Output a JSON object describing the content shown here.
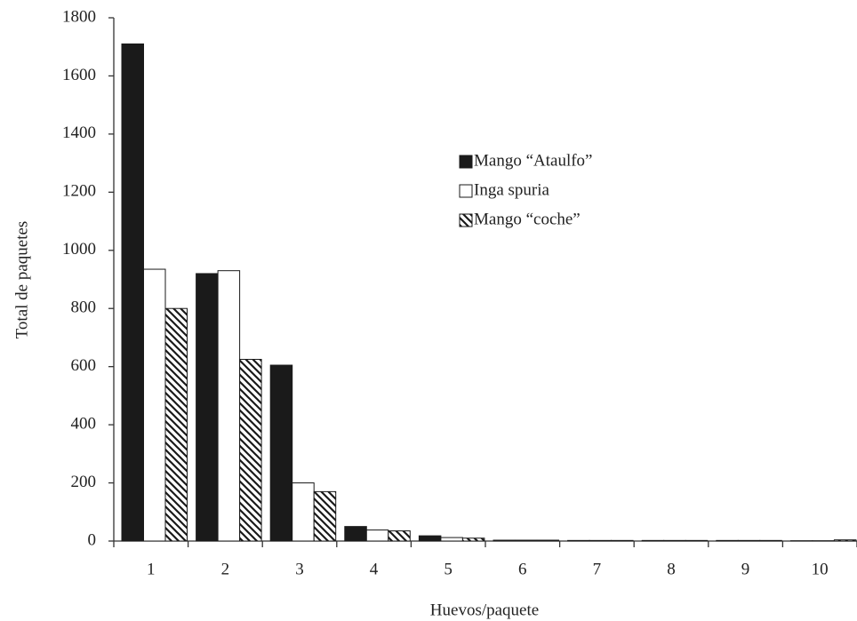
{
  "chart_data": {
    "type": "bar",
    "x_label": "Huevos/paquete",
    "y_label": "Total de paquetes",
    "categories": [
      "1",
      "2",
      "3",
      "4",
      "5",
      "6",
      "7",
      "8",
      "9",
      "10"
    ],
    "series": [
      {
        "name": "Mango “Ataulfo”",
        "color": "#1a1a1a",
        "values": [
          1710,
          920,
          605,
          50,
          18,
          3,
          2,
          2,
          2,
          1
        ]
      },
      {
        "name": "Inga spuria",
        "color": "#ffffff",
        "values": [
          935,
          930,
          200,
          38,
          12,
          3,
          2,
          2,
          2,
          1
        ]
      },
      {
        "name": "Mango “coche”",
        "color": "hatch",
        "values": [
          800,
          625,
          170,
          35,
          10,
          3,
          2,
          2,
          2,
          4
        ]
      }
    ],
    "ylim": [
      0,
      1800
    ],
    "yticks": [
      0,
      200,
      400,
      600,
      800,
      1000,
      1200,
      1400,
      1600,
      1800
    ]
  }
}
